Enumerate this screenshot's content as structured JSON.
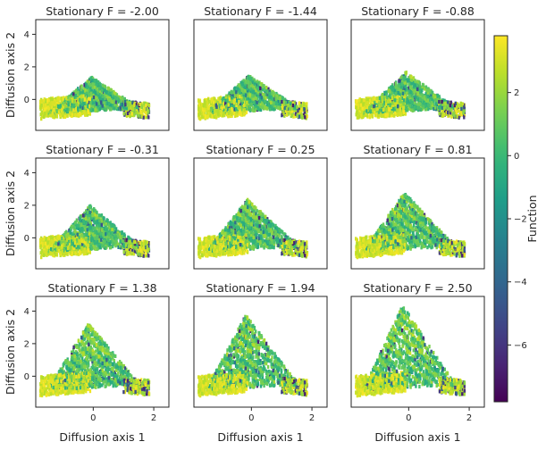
{
  "chart_data": {
    "type": "scatter",
    "layout": "3x3 grid of scatter panels with shared colorbar",
    "x_axis": {
      "label": "Diffusion axis 1",
      "ticks": [
        0,
        2
      ],
      "range": [
        -1.9,
        2.5
      ]
    },
    "y_axis": {
      "label": "Diffusion axis 2",
      "ticks": [
        0,
        2,
        4
      ],
      "range": [
        -1.9,
        4.9
      ]
    },
    "colorbar": {
      "label": "Function",
      "ticks": [
        "−6",
        "−4",
        "−2",
        "0",
        "2"
      ],
      "tick_values": [
        -6,
        -4,
        -2,
        0,
        2
      ],
      "range": [
        -7.8,
        3.8
      ],
      "colormap": "viridis"
    },
    "panels": [
      {
        "title": "Stationary F = -2.00",
        "F": -2.0
      },
      {
        "title": "Stationary F = -1.44",
        "F": -1.44
      },
      {
        "title": "Stationary F = -0.88",
        "F": -0.88
      },
      {
        "title": "Stationary F = -0.31",
        "F": -0.31
      },
      {
        "title": "Stationary F = 0.25",
        "F": 0.25
      },
      {
        "title": "Stationary F = 0.81",
        "F": 0.81
      },
      {
        "title": "Stationary F = 1.38",
        "F": 1.38
      },
      {
        "title": "Stationary F = 1.94",
        "F": 1.94
      },
      {
        "title": "Stationary F = 2.50",
        "F": 2.5
      }
    ]
  }
}
